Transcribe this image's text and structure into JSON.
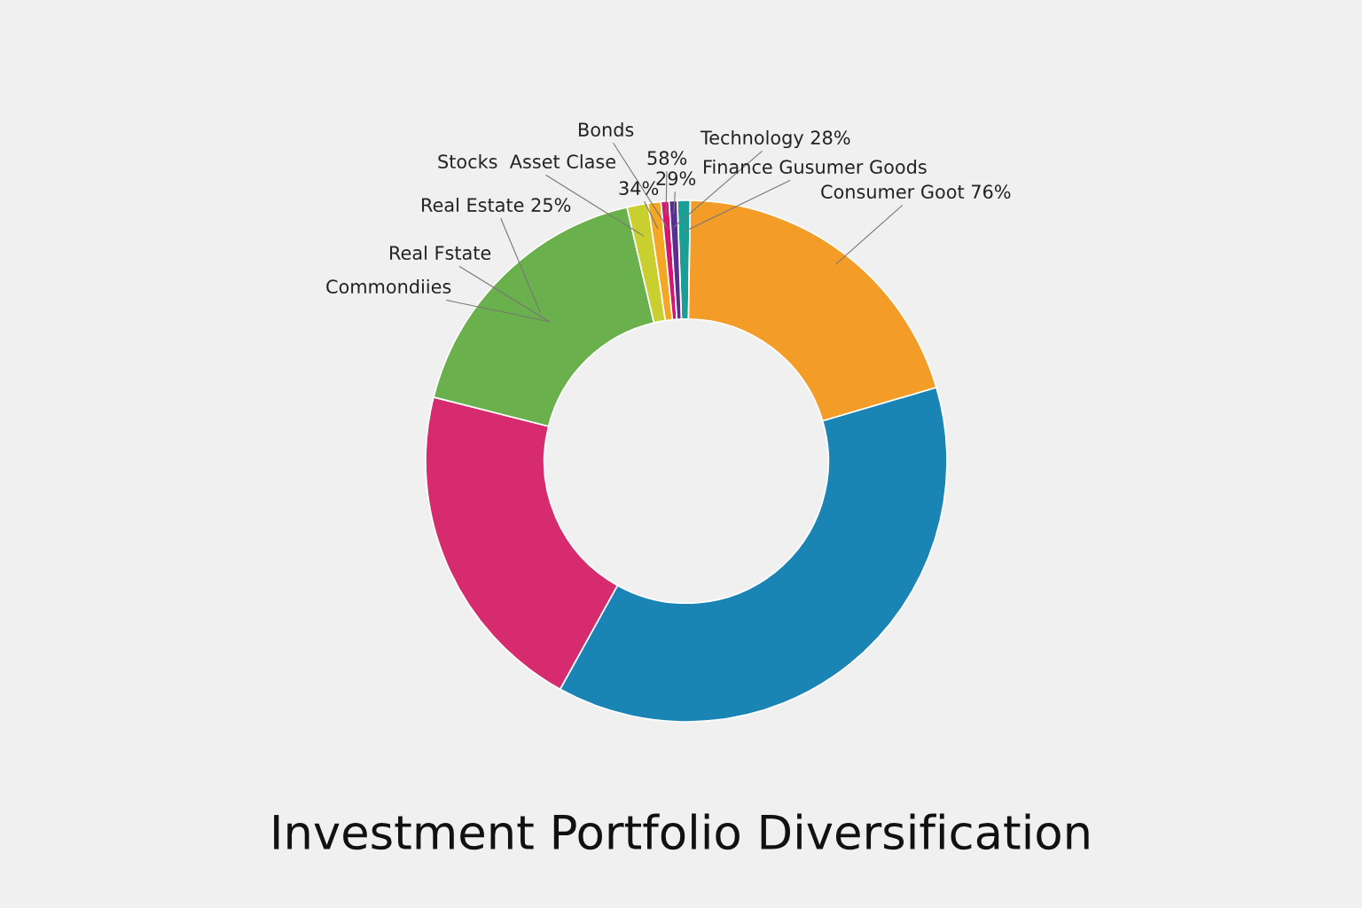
{
  "chart_data": {
    "type": "donut",
    "title": "Investment Portfolio Diversification",
    "categories": [
      null,
      null,
      null,
      null,
      null,
      null,
      null,
      null,
      null
    ],
    "values": [
      0.8,
      20.2,
      37.6,
      20.9,
      17.4,
      1.3,
      0.8,
      0.5,
      0.5
    ],
    "colors": [
      "#1a9e96",
      "#f39c27",
      "#1a85b5",
      "#d62b6e",
      "#6ab04c",
      "#c8cf2e",
      "#f5a623",
      "#d4166e",
      "#5a2d91"
    ],
    "annotations": [
      "Bonds",
      "Technology 28%",
      "Stocks  Asset Clase",
      "58%",
      "34%",
      "29%",
      "Finance Gusumer Goods",
      "Consumer Goot 76%",
      "Real Estate 25%",
      "Real Fstate",
      "Commondiies"
    ],
    "legend": false
  }
}
